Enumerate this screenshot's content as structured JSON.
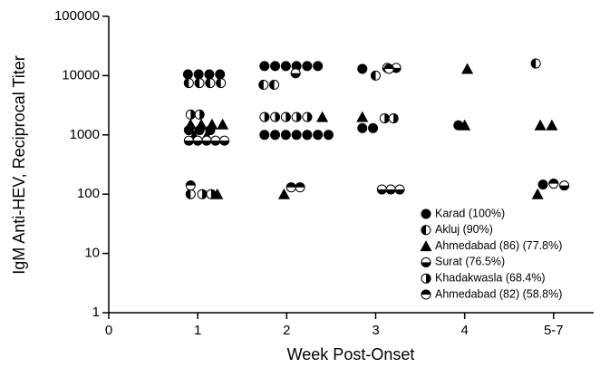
{
  "chart_data": {
    "type": "scatter",
    "x_label": "Week Post-Onset",
    "y_label": "IgM Anti-HEV, Reciprocal Titer",
    "xlim": [
      0,
      5.45
    ],
    "ylim": [
      1,
      100000
    ],
    "y_log": true,
    "xticks": [
      0,
      1,
      2,
      3,
      4,
      {
        "value": 5,
        "label": "5-7"
      }
    ],
    "yticks": [
      1,
      10,
      100,
      1000,
      10000,
      100000
    ],
    "legend": "lower right",
    "series": [
      {
        "name": "Karad (100%)",
        "color": "#000000",
        "marker": "circle",
        "x": [
          0.89,
          1.01,
          1.13,
          1.25,
          0.9,
          1.02,
          1.14,
          1.75,
          1.87,
          1.99,
          2.11,
          2.23,
          2.35,
          1.75,
          1.87,
          1.99,
          2.11,
          2.23,
          2.35,
          2.47,
          2.85,
          2.97,
          2.85,
          3.93,
          4.88
        ],
        "y": [
          10500,
          10500,
          10500,
          10500,
          1200,
          1200,
          1200,
          14500,
          14500,
          14500,
          14500,
          14500,
          14500,
          1000,
          1000,
          1000,
          1000,
          1000,
          1000,
          1000,
          1300,
          1300,
          13000,
          1450,
          145
        ]
      },
      {
        "name": "Akluj (90%)",
        "color": "#000000",
        "marker": "half-left",
        "x": [
          0.9,
          1.02,
          1.14,
          1.26,
          0.92,
          1.74,
          1.86,
          3.0,
          4.8
        ],
        "y": [
          7500,
          7500,
          7500,
          7500,
          100,
          7000,
          7000,
          10000,
          16000
        ]
      },
      {
        "name": "Ahmedabad (86) (77.8%)",
        "color": "#000000",
        "marker": "triangle",
        "x": [
          0.92,
          1.04,
          1.16,
          1.28,
          0.96,
          1.1,
          1.22,
          2.4,
          1.97,
          2.85,
          4.0,
          4.03,
          4.85,
          4.98,
          4.82
        ],
        "y": [
          1500,
          1500,
          1500,
          1500,
          950,
          950,
          100,
          2000,
          100,
          2000,
          1450,
          13000,
          1450,
          1450,
          100
        ]
      },
      {
        "name": "Surat (76.5%)",
        "color": "#000000",
        "marker": "half-bottom",
        "x": [
          2.1,
          3.13,
          3.23,
          3.07,
          3.17,
          3.27,
          5.12,
          0.9,
          1.0,
          1.1,
          1.2,
          1.3
        ],
        "y": [
          11000,
          13500,
          13500,
          120,
          120,
          120,
          140,
          800,
          800,
          800,
          800,
          800
        ]
      },
      {
        "name": "Khadakwasla (68.4%)",
        "color": "#000000",
        "marker": "half-right",
        "x": [
          0.92,
          1.02,
          1.75,
          1.87,
          1.99,
          2.11,
          2.23,
          1.05,
          1.15,
          3.1,
          3.2
        ],
        "y": [
          2200,
          2200,
          2000,
          2000,
          2000,
          2000,
          2000,
          100,
          100,
          1900,
          1900
        ]
      },
      {
        "name": "Ahmedabad (82) (58.8%)",
        "color": "#000000",
        "marker": "half-top",
        "x": [
          0.92,
          2.05,
          2.15,
          3.15,
          5.0
        ],
        "y": [
          140,
          130,
          130,
          13000,
          150
        ]
      }
    ]
  }
}
